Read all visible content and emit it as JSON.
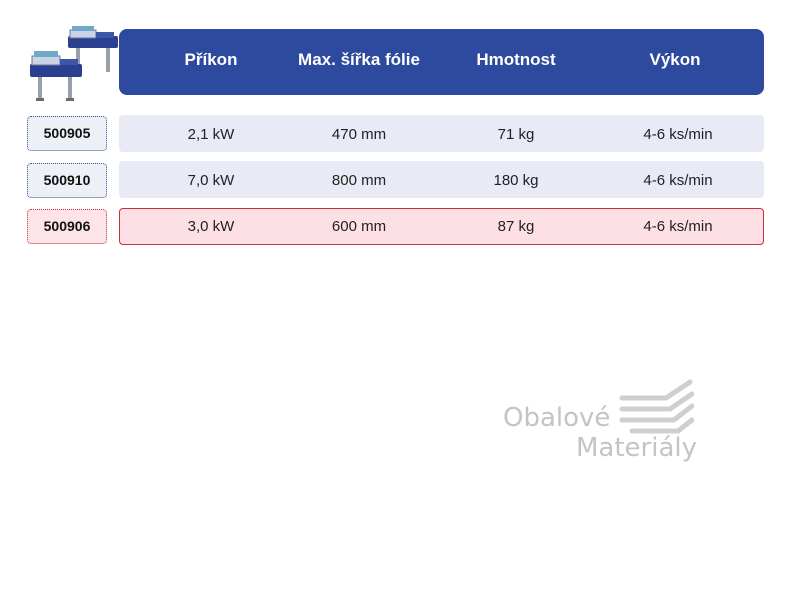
{
  "header": {
    "columns": [
      "Příkon",
      "Max. šířka fólie",
      "Hmotnost",
      "Výkon"
    ]
  },
  "rows": [
    {
      "code": "500905",
      "cells": [
        "2,1 kW",
        "470 mm",
        "71 kg",
        "4-6 ks/min"
      ],
      "highlighted": false
    },
    {
      "code": "500910",
      "cells": [
        "7,0 kW",
        "800 mm",
        "180 kg",
        "4-6 ks/min"
      ],
      "highlighted": false
    },
    {
      "code": "500906",
      "cells": [
        "3,0 kW",
        "600 mm",
        "87 kg",
        "4-6 ks/min"
      ],
      "highlighted": true
    }
  ],
  "watermark": {
    "line1": "Obalové",
    "line2": "Materiály"
  },
  "colors": {
    "header_bg": "#2e4a9e",
    "row_bg": "#e8eaf5",
    "highlight_bg": "#fde0e5",
    "highlight_border": "#c9303e",
    "badge_border": "#3a4f9a"
  },
  "icons": {
    "product": "shrink-wrap-machine-image",
    "watermark": "stacked-stripes-logo"
  }
}
